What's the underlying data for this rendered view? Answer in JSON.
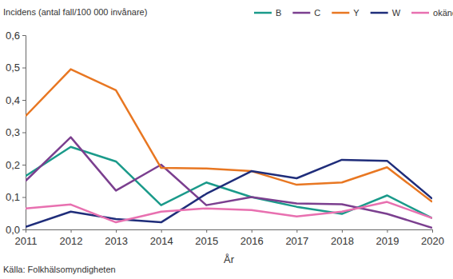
{
  "chart_data": {
    "type": "line",
    "y_label": "Incidens (antal fall/100 000 invånare)",
    "x_label": "År",
    "source": "Källa: Folkhälsomyndigheten",
    "x": [
      2011,
      2012,
      2013,
      2014,
      2015,
      2016,
      2017,
      2018,
      2019,
      2020
    ],
    "xlim": [
      2011,
      2020
    ],
    "xticks": [
      2011,
      2012,
      2013,
      2014,
      2015,
      2016,
      2017,
      2018,
      2019,
      2020
    ],
    "ylim": [
      0,
      0.6
    ],
    "yticks": [
      {
        "value": 0,
        "label": "0,0"
      },
      {
        "value": 0.1,
        "label": "0,1"
      },
      {
        "value": 0.2,
        "label": "0,2"
      },
      {
        "value": 0.3,
        "label": "0,3"
      },
      {
        "value": 0.4,
        "label": "0,4"
      },
      {
        "value": 0.5,
        "label": "0,5"
      },
      {
        "value": 0.6,
        "label": "0,6"
      }
    ],
    "grid": false,
    "legend": "top",
    "series": [
      {
        "name": "B",
        "color": "#1a9a8a",
        "values": [
          0.165,
          0.255,
          0.21,
          0.075,
          0.145,
          0.1,
          0.07,
          0.048,
          0.105,
          0.035
        ]
      },
      {
        "name": "C",
        "color": "#7b3f8f",
        "values": [
          0.15,
          0.285,
          0.12,
          0.2,
          0.075,
          0.1,
          0.08,
          0.078,
          0.048,
          0.005
        ]
      },
      {
        "name": "Y",
        "color": "#e87722",
        "values": [
          0.35,
          0.495,
          0.43,
          0.19,
          0.188,
          0.18,
          0.138,
          0.145,
          0.192,
          0.085
        ]
      },
      {
        "name": "W",
        "color": "#1f2d7a",
        "values": [
          0.008,
          0.055,
          0.032,
          0.022,
          0.11,
          0.18,
          0.158,
          0.215,
          0.212,
          0.095
        ]
      },
      {
        "name": "okänd/annan",
        "color": "#e870b0",
        "values": [
          0.065,
          0.077,
          0.022,
          0.055,
          0.065,
          0.06,
          0.04,
          0.055,
          0.085,
          0.035
        ]
      }
    ]
  }
}
